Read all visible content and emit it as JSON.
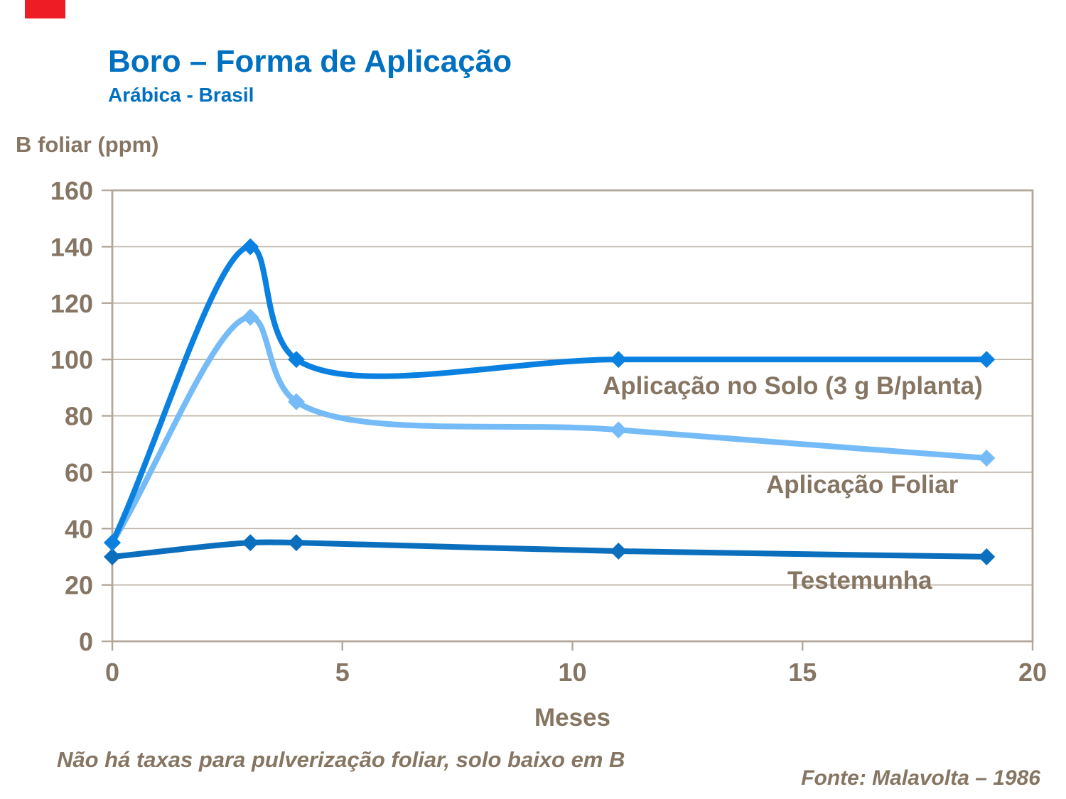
{
  "slide": {
    "title": "Boro – Forma de Aplicação",
    "subtitle": "Arábica - Brasil",
    "footnote": "Não há taxas para pulverização foliar, solo baixo em B",
    "source": "Fonte: Malavolta – 1986"
  },
  "colors": {
    "title_blue": "#0070c0",
    "text_brown": "#867562",
    "axis": "#b2a79a",
    "grid": "#beb4a7",
    "red_mark": "#ee1c24"
  },
  "chart_data": {
    "type": "line",
    "title": "Boro – Forma de Aplicação",
    "xlabel": "Meses",
    "ylabel": "B foliar (ppm)",
    "xlim": [
      0,
      20
    ],
    "ylim": [
      0,
      160
    ],
    "x_ticks": [
      0,
      5,
      10,
      15,
      20
    ],
    "y_ticks": [
      0,
      20,
      40,
      60,
      80,
      100,
      120,
      140,
      160
    ],
    "grid": true,
    "smooth_lines": true,
    "marker": "diamond",
    "legend_position": "inline-labels",
    "series": [
      {
        "name": "Aplicação no Solo (3 g B/planta)",
        "color": "#0a81e0",
        "x": [
          0,
          3,
          4,
          11,
          19
        ],
        "values": [
          35,
          140,
          100,
          100,
          100
        ]
      },
      {
        "name": "Aplicação Foliar",
        "color": "#74bbf7",
        "x": [
          0,
          3,
          4,
          11,
          19
        ],
        "values": [
          35,
          115,
          85,
          75,
          65
        ]
      },
      {
        "name": "Testemunha",
        "color": "#0c6fbd",
        "x": [
          0,
          3,
          4,
          11,
          19
        ],
        "values": [
          30,
          35,
          35,
          32,
          30
        ]
      }
    ]
  }
}
